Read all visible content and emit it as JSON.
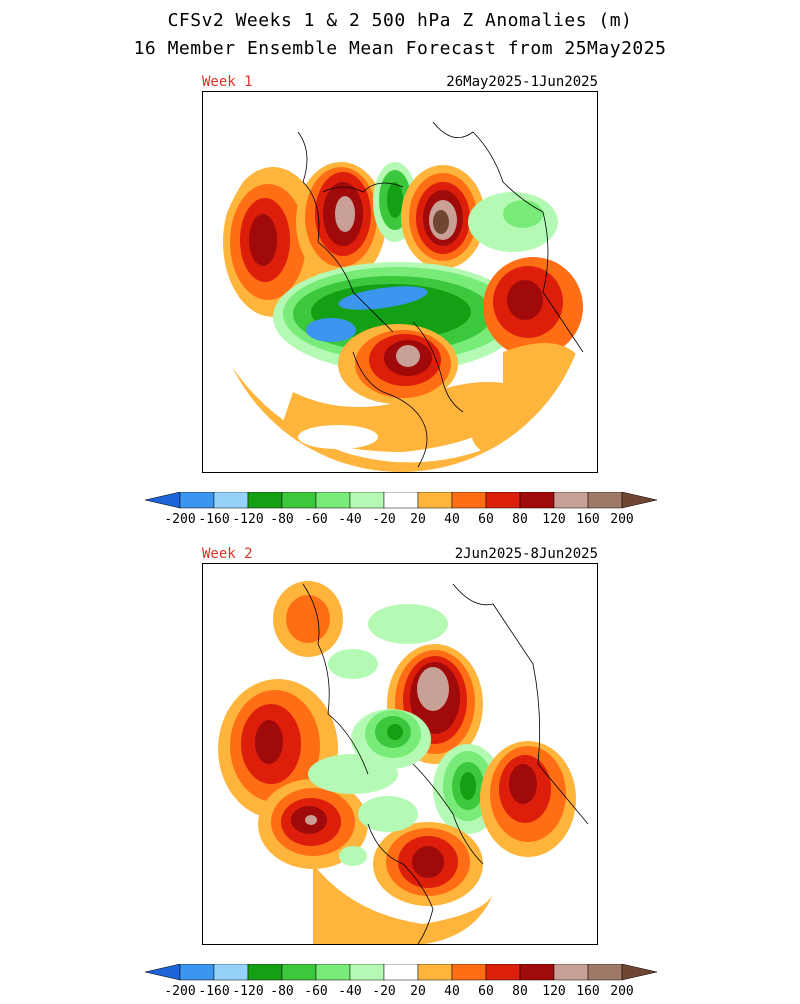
{
  "title_line1": "CFSv2 Weeks 1 & 2 500 hPa Z Anomalies (m)",
  "title_line2": "16 Member Ensemble Mean Forecast from 25May2025",
  "panels": [
    {
      "label": "Week 1",
      "dates": "26May2025-1Jun2025"
    },
    {
      "label": "Week 2",
      "dates": "2Jun2025-8Jun2025"
    }
  ],
  "colorbar": {
    "ticks": [
      "-200",
      "-160",
      "-120",
      "-80",
      "-60",
      "-40",
      "-20",
      "20",
      "40",
      "60",
      "80",
      "120",
      "160",
      "200"
    ],
    "colors": [
      "#1e64d8",
      "#3c96f0",
      "#96d2fa",
      "#14a014",
      "#3cc83c",
      "#78eb78",
      "#b4fab4",
      "#ffffff",
      "#ffb43c",
      "#ff6e14",
      "#dc1e0a",
      "#a00a0a",
      "#c8a096",
      "#a07868",
      "#6e4632"
    ]
  }
}
